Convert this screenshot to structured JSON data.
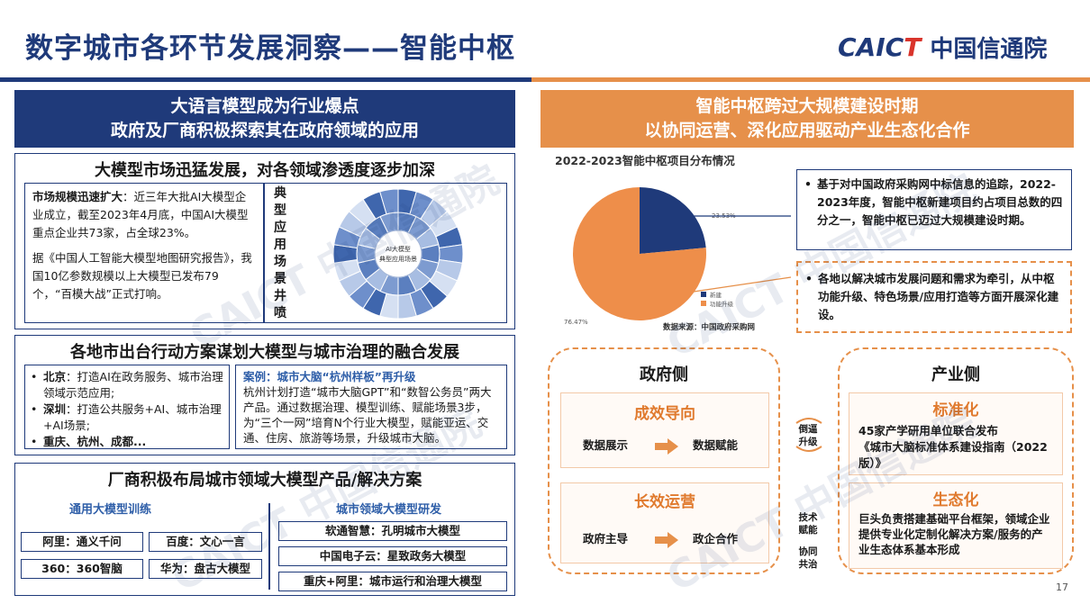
{
  "title": "数字城市各环节发展洞察——智能中枢",
  "logo": {
    "en_a": "CAI",
    "en_b": "C",
    "en_c": "T",
    "cn": "中国信通院"
  },
  "left_header": {
    "line1": "大语言模型成为行业爆点",
    "line2": "政府及厂商积极探索其在政府领域的应用"
  },
  "right_header": {
    "line1": "智能中枢跨过大规模建设时期",
    "line2": "以协同运营、深化应用驱动产业生态化合作"
  },
  "sec1": {
    "title": "大模型市场迅猛发展，对各领域渗透度逐步加深",
    "p1_bold": "市场规模迅速扩大",
    "p1_rest": "：近三年大批AI大模型企业成立，截至2023年4月底，中国AI大模型重点企业共73家，占全球23%。",
    "p2": "据《中国人工智能大模型地图研究报告》，我国10亿参数规模以上大模型已发布79个，“百模大战”正式打响。",
    "vertical_label": [
      "典",
      "型",
      "应",
      "用",
      "场",
      "景",
      "井",
      "喷"
    ],
    "wheel_center": [
      "AI大模型",
      "典型应用场景"
    ]
  },
  "sec2": {
    "title": "各地市出台行动方案谋划大模型与城市治理的融合发展",
    "items": [
      {
        "city": "北京",
        "text": "：打造AI在政务服务、城市治理领域示范应用;"
      },
      {
        "city": "深圳",
        "text": "：打造公共服务+AI、城市治理+AI场景;"
      },
      {
        "city": "重庆、杭州、成都...",
        "text": ""
      }
    ],
    "case_label": "案例：",
    "case_title": "城市大脑“杭州样板”再升级",
    "case_text": "杭州计划打造“城市大脑GPT”和“数智公务员”两大产品。通过数据治理、模型训练、赋能场景3步，为“三个一网”培育N个行业大模型，赋能亚运、交通、住房、旅游等场景，升级城市大脑。"
  },
  "sec3": {
    "title": "厂商积极布局城市领域大模型产品/解决方案",
    "left_head": "通用大模型训练",
    "right_head": "城市领域大模型研发",
    "left_items": [
      "阿里：通义千问",
      "百度：文心一言",
      "360：360智脑",
      "华为：盘古大模型"
    ],
    "right_items": [
      "软通智慧：孔明城市大模型",
      "中国电子云：星致政务大模型",
      "重庆+阿里：城市运行和治理大模型"
    ]
  },
  "chart": {
    "title": "2022-2023智能中枢项目分布情况",
    "source": "数据来源：中国政府采购网",
    "legend": [
      "新建",
      "功能升级"
    ]
  },
  "chart_data": {
    "type": "pie",
    "title": "2022-2023智能中枢项目分布情况",
    "categories": [
      "新建",
      "功能升级"
    ],
    "values": [
      23.53,
      76.47
    ],
    "labels": [
      "23.53%",
      "76.47%"
    ],
    "colors": [
      "#1f3a7a",
      "#ee8e4a"
    ],
    "legend_position": "bottom-right"
  },
  "notes": {
    "n1": "基于对中国政府采购网中标信息的追踪，2022-2023年度，智能中枢新建项目约占项目总数的四分之一，智能中枢已迈过大规模建设时期。",
    "n2": "各地以解决城市发展问题和需求为牵引，从中枢功能升级、特色场景/应用打造等方面开展深化建设。"
  },
  "gov": {
    "head": "政府侧",
    "t1": "成效导向",
    "a1": "数据展示",
    "b1": "数据赋能",
    "t2": "长效运营",
    "a2": "政府主导",
    "b2": "政企合作"
  },
  "mid": {
    "top": [
      "倒逼",
      "升级"
    ],
    "mid": [
      "技术",
      "赋能"
    ],
    "bot": [
      "协同",
      "共治"
    ]
  },
  "ind": {
    "head": "产业侧",
    "t1": "标准化",
    "d1a": "45家产学研用单位联合发布",
    "d1b": "《城市大脑标准体系建设指南（2022版）》",
    "t2": "生态化",
    "d2": "巨头负责搭建基础平台框架，领域企业提供专业化定制化解决方案/服务的产业生态体系基本形成"
  },
  "page_num": "17",
  "colors": {
    "navy": "#1f3a7a",
    "orange": "#e6904a",
    "accent_blue": "#2e5ea8"
  }
}
